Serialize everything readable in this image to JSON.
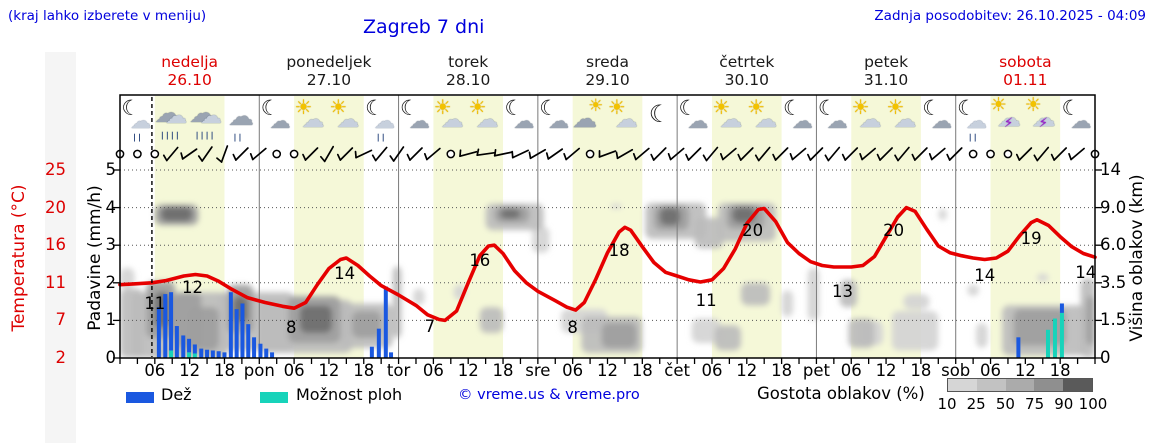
{
  "header": {
    "hint": "(kraj lahko izberete v meniju)",
    "title": "Zagreb 7 dni",
    "updated": "Zadnja posodobitev: 26.10.2025 - 04:09"
  },
  "days": [
    {
      "name": "nedelja",
      "date": "26.10",
      "highlight": true
    },
    {
      "name": "ponedeljek",
      "date": "27.10",
      "highlight": false
    },
    {
      "name": "torek",
      "date": "28.10",
      "highlight": false
    },
    {
      "name": "sreda",
      "date": "29.10",
      "highlight": false
    },
    {
      "name": "četrtek",
      "date": "30.10",
      "highlight": false
    },
    {
      "name": "petek",
      "date": "31.10",
      "highlight": false
    },
    {
      "name": "sobota",
      "date": "01.11",
      "highlight": true
    }
  ],
  "axes": {
    "temp_title": "Temperatura (°C)",
    "temp_ticks": [
      "25",
      "20",
      "16",
      "11",
      "7",
      "2"
    ],
    "precip_title": "Padavine (mm/h)",
    "precip_ticks": [
      "5",
      "4",
      "3",
      "2",
      "1",
      "0"
    ],
    "cloud_title": "Višina oblakov (km)",
    "cloud_ticks": [
      "14",
      "9.0",
      "6.0",
      "3.5",
      "1.5",
      "0"
    ],
    "hour_labels": [
      "06",
      "12",
      "18"
    ],
    "day_abbr": [
      "pon",
      "tor",
      "sre",
      "čet",
      "pet",
      "sob"
    ]
  },
  "legend": {
    "rain": "Dež",
    "showers": "Možnost ploh",
    "credit": "© vreme.us & vreme.pro",
    "density_title": "Gostota oblakov (%)",
    "density_ticks": [
      "10",
      "25",
      "50",
      "75",
      "90",
      "100"
    ]
  },
  "colors": {
    "link": "#0000dd",
    "accent_red": "#dd0000",
    "temp_line": "#e60000",
    "rain_bar": "#1a58e0",
    "shower_bar": "#17d3ba",
    "day_band": "#f5f8d8",
    "grid": "#555555",
    "density_scale": [
      "#d6d6d6",
      "#c2c2c2",
      "#ababab",
      "#8f8f8f",
      "#5a5a5a"
    ]
  },
  "chart_data": {
    "type": "line",
    "title": "Zagreb 7 dni",
    "hours_span": 168,
    "now_hour": 5.5,
    "temp_scale_c": [
      2,
      7,
      11,
      16,
      20,
      25
    ],
    "cloud_scale_km": [
      0,
      1.5,
      3.5,
      6,
      9,
      14
    ],
    "precip_scale_mm": [
      0,
      5
    ],
    "temperature_points": [
      [
        0,
        10.8
      ],
      [
        3,
        10.9
      ],
      [
        5.5,
        11
      ],
      [
        8,
        11.3
      ],
      [
        11,
        11.9
      ],
      [
        13,
        12.1
      ],
      [
        15,
        11.9
      ],
      [
        17,
        11.2
      ],
      [
        19,
        10.4
      ],
      [
        22,
        9.4
      ],
      [
        25,
        8.9
      ],
      [
        28,
        8.5
      ],
      [
        30,
        8.3
      ],
      [
        32,
        8.9
      ],
      [
        34,
        10.8
      ],
      [
        36,
        12.9
      ],
      [
        38,
        14.1
      ],
      [
        39,
        14.3
      ],
      [
        41,
        13.3
      ],
      [
        43,
        11.9
      ],
      [
        45,
        10.7
      ],
      [
        48,
        9.7
      ],
      [
        51,
        8.6
      ],
      [
        53,
        7.6
      ],
      [
        55,
        7.1
      ],
      [
        56,
        7.0
      ],
      [
        58,
        8.0
      ],
      [
        60,
        11.0
      ],
      [
        62,
        14.6
      ],
      [
        63.5,
        15.9
      ],
      [
        64.5,
        16.0
      ],
      [
        66,
        14.9
      ],
      [
        68,
        12.6
      ],
      [
        70,
        11.0
      ],
      [
        72,
        10.1
      ],
      [
        75,
        9.1
      ],
      [
        77,
        8.4
      ],
      [
        78.5,
        8.1
      ],
      [
        80,
        8.9
      ],
      [
        82,
        11.5
      ],
      [
        84,
        15.0
      ],
      [
        86,
        17.4
      ],
      [
        87,
        17.9
      ],
      [
        88,
        17.6
      ],
      [
        90,
        15.8
      ],
      [
        92,
        13.7
      ],
      [
        94,
        12.4
      ],
      [
        96,
        11.9
      ],
      [
        98,
        11.4
      ],
      [
        100,
        11.1
      ],
      [
        102,
        11.4
      ],
      [
        104,
        12.9
      ],
      [
        106,
        15.5
      ],
      [
        108,
        18.3
      ],
      [
        110,
        19.8
      ],
      [
        111,
        19.9
      ],
      [
        113,
        18.5
      ],
      [
        115,
        16.3
      ],
      [
        117,
        14.9
      ],
      [
        119,
        13.8
      ],
      [
        121,
        13.3
      ],
      [
        123,
        13.1
      ],
      [
        126,
        13.1
      ],
      [
        128,
        13.3
      ],
      [
        130,
        14.5
      ],
      [
        132,
        16.9
      ],
      [
        134,
        19.0
      ],
      [
        135.5,
        20.0
      ],
      [
        137,
        19.6
      ],
      [
        139,
        17.7
      ],
      [
        141,
        15.9
      ],
      [
        143,
        15.0
      ],
      [
        145,
        14.6
      ],
      [
        147,
        14.3
      ],
      [
        149,
        14.1
      ],
      [
        151,
        14.3
      ],
      [
        153,
        15.2
      ],
      [
        155,
        17.0
      ],
      [
        157,
        18.4
      ],
      [
        158,
        18.7
      ],
      [
        160,
        18.1
      ],
      [
        162,
        16.9
      ],
      [
        164,
        15.8
      ],
      [
        166,
        14.9
      ],
      [
        168,
        14.4
      ]
    ],
    "temperature_labels": [
      [
        6,
        "11",
        303
      ],
      [
        12.5,
        "12",
        287
      ],
      [
        29.5,
        "8",
        327
      ],
      [
        38.7,
        "14",
        273
      ],
      [
        53.4,
        "7",
        326
      ],
      [
        62,
        "16",
        260
      ],
      [
        78,
        "8",
        327
      ],
      [
        86,
        "18",
        250
      ],
      [
        101,
        "11",
        300
      ],
      [
        109,
        "20",
        230
      ],
      [
        124.5,
        "13",
        291
      ],
      [
        133.3,
        "20",
        230
      ],
      [
        149,
        "14",
        275
      ],
      [
        157,
        "19",
        238
      ],
      [
        166.4,
        "14",
        272
      ]
    ],
    "precipitation": [
      [
        6.7,
        1.35,
        0
      ],
      [
        7.8,
        1.7,
        0
      ],
      [
        8.8,
        1.55,
        0.2
      ],
      [
        9.8,
        0.85,
        0
      ],
      [
        10.9,
        0.6,
        0
      ],
      [
        11.9,
        0.36,
        0.15
      ],
      [
        12.9,
        0.24,
        0.12
      ],
      [
        14,
        0.25,
        0
      ],
      [
        15,
        0.22,
        0
      ],
      [
        16,
        0.2,
        0
      ],
      [
        17,
        0.18,
        0
      ],
      [
        18,
        0.15,
        0
      ],
      [
        19.1,
        1.75,
        0
      ],
      [
        20.1,
        1.3,
        0
      ],
      [
        21.1,
        1.45,
        0
      ],
      [
        22.1,
        0.9,
        0
      ],
      [
        23.1,
        0.55,
        0
      ],
      [
        24.2,
        0.38,
        0
      ],
      [
        25.2,
        0.25,
        0
      ],
      [
        26.2,
        0.15,
        0
      ],
      [
        43.4,
        0.3,
        0
      ],
      [
        44.6,
        0.78,
        0
      ],
      [
        45.8,
        1.9,
        0
      ],
      [
        46.7,
        0.15,
        0
      ],
      [
        154.8,
        0.55,
        0
      ],
      [
        159.9,
        0,
        0.75
      ],
      [
        161.1,
        0,
        1.05
      ],
      [
        162.3,
        0.25,
        1.2
      ]
    ],
    "cloud_blobs": [
      [
        0,
        4,
        0,
        3.2,
        3
      ],
      [
        0,
        2.5,
        3.2,
        4.5,
        2
      ],
      [
        2,
        18.5,
        0,
        3,
        3
      ],
      [
        4.5,
        9.5,
        0.8,
        3.6,
        4
      ],
      [
        6,
        8.5,
        1.2,
        3,
        5
      ],
      [
        9.5,
        14,
        0.4,
        3,
        4
      ],
      [
        12,
        17,
        0.3,
        2.2,
        4
      ],
      [
        6,
        13.5,
        7.6,
        9.4,
        4
      ],
      [
        7,
        12.5,
        7.9,
        9.1,
        5
      ],
      [
        17,
        30,
        0.3,
        3,
        3
      ],
      [
        18.5,
        23,
        1,
        3.4,
        4
      ],
      [
        19.5,
        22,
        1.4,
        2.8,
        5
      ],
      [
        24,
        40,
        0.2,
        2.6,
        3
      ],
      [
        29,
        38,
        0.6,
        2.8,
        4
      ],
      [
        31,
        36.5,
        1,
        2.3,
        5
      ],
      [
        38,
        47,
        0.4,
        2.4,
        3
      ],
      [
        40,
        45,
        0.8,
        2,
        4
      ],
      [
        47,
        48.5,
        0.8,
        4.6,
        3
      ],
      [
        50.5,
        52.5,
        2.3,
        3.2,
        2
      ],
      [
        57.5,
        59.5,
        2.6,
        3.4,
        2
      ],
      [
        62,
        66,
        1,
        2.2,
        3
      ],
      [
        63,
        73,
        7.2,
        9.5,
        3
      ],
      [
        64.5,
        70.5,
        7.8,
        9.2,
        4
      ],
      [
        65.5,
        69,
        8.1,
        8.9,
        5
      ],
      [
        71,
        74,
        5.5,
        7.5,
        2
      ],
      [
        76,
        84,
        1,
        2.1,
        2
      ],
      [
        79.5,
        90,
        0.2,
        1.7,
        3
      ],
      [
        83,
        89,
        0.4,
        1.4,
        4
      ],
      [
        84.5,
        86.5,
        8.9,
        9.5,
        2
      ],
      [
        90.5,
        101,
        6.5,
        9.6,
        3
      ],
      [
        92,
        98,
        7.2,
        9.3,
        4
      ],
      [
        93,
        96.5,
        7.6,
        9,
        5
      ],
      [
        99,
        104,
        5.8,
        8.2,
        3
      ],
      [
        103,
        113,
        6.3,
        9.6,
        3
      ],
      [
        104.5,
        111,
        7.3,
        9.4,
        4
      ],
      [
        105.5,
        109.5,
        7.8,
        9.1,
        5
      ],
      [
        98.5,
        103.5,
        0.6,
        1.6,
        2
      ],
      [
        102.5,
        107,
        0.3,
        1.3,
        3
      ],
      [
        107,
        112,
        2.3,
        3.5,
        3
      ],
      [
        114,
        116,
        1.7,
        3.1,
        2
      ],
      [
        118.5,
        120.5,
        1.5,
        4.5,
        2
      ],
      [
        124,
        127,
        2.2,
        3.7,
        3
      ],
      [
        125.5,
        130,
        0.4,
        1.6,
        3
      ],
      [
        127,
        131.5,
        0.5,
        1.5,
        2
      ],
      [
        133,
        141,
        0.3,
        2,
        2
      ],
      [
        135,
        139.5,
        2.1,
        2.9,
        2
      ],
      [
        141,
        142.5,
        8,
        8.9,
        2
      ],
      [
        146,
        148,
        2.8,
        3.4,
        2
      ],
      [
        147.5,
        149.5,
        0.4,
        1.4,
        2
      ],
      [
        152,
        166.5,
        0.1,
        2.3,
        3
      ],
      [
        154,
        163,
        0.5,
        2.1,
        4
      ],
      [
        158,
        160,
        3.6,
        4.1,
        2
      ],
      [
        165.5,
        168,
        0,
        3.8,
        3
      ],
      [
        166.5,
        168,
        0.5,
        2.8,
        4
      ]
    ],
    "wind": [
      "c",
      "c",
      "c",
      50,
      35,
      55,
      70,
      45,
      40,
      "c",
      "c",
      45,
      60,
      45,
      25,
      50,
      55,
      45,
      40,
      "c",
      15,
      8,
      12,
      25,
      30,
      35,
      40,
      "c",
      20,
      30,
      40,
      45,
      40,
      45,
      50,
      40,
      45,
      50,
      45,
      40,
      45,
      50,
      45,
      40,
      45,
      50,
      45,
      40,
      45,
      "c",
      "c",
      "c",
      45,
      50,
      45,
      40,
      "c"
    ],
    "icons": [
      "moon-cloud-drizzle",
      "rain",
      "rain",
      "cloud-drizzle",
      "moon-cloud",
      "sun-cloud",
      "sun-cloud",
      "moon-cloud-drizzle",
      "moon-cloud",
      "sun-cloud",
      "sun-cloud",
      "moon-cloud",
      "moon-cloud",
      "cloud-sun",
      "sun-cloud",
      "moon",
      "moon-cloud",
      "sun-cloud",
      "sun-cloud",
      "moon-cloud",
      "moon-cloud",
      "sun-cloud",
      "sun-cloud",
      "moon-cloud",
      "moon-cloud-drizzle",
      "sun-cloud-storm",
      "sun-cloud-storm",
      "moon-cloud"
    ]
  }
}
